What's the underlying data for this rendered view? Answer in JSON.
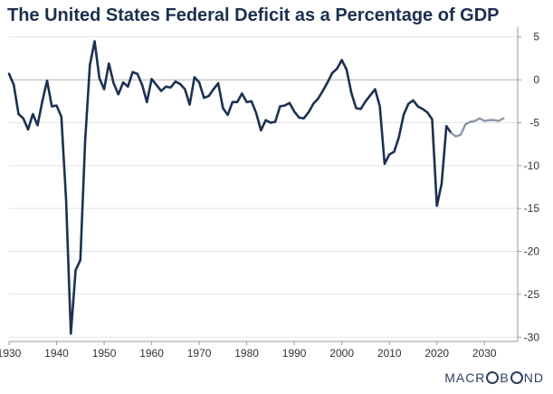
{
  "chart_data": {
    "type": "line",
    "title": "The United States Federal Deficit as a Percentage of GDP",
    "xlabel": "",
    "ylabel": "",
    "xlim": [
      1930,
      2037
    ],
    "ylim": [
      -30.5,
      5.5
    ],
    "x_ticks": [
      1930,
      1940,
      1950,
      1960,
      1970,
      1980,
      1990,
      2000,
      2010,
      2020,
      2030
    ],
    "y_ticks": [
      5,
      0,
      -5,
      -10,
      -15,
      -20,
      -25,
      -30
    ],
    "y_axis_side": "right",
    "grid": "horizontal",
    "series": [
      {
        "color": "#1c3152",
        "x": [
          1930,
          1931,
          1932,
          1933,
          1934,
          1935,
          1936,
          1937,
          1938,
          1939,
          1940,
          1941,
          1942,
          1943,
          1944,
          1945,
          1946,
          1947,
          1948,
          1949,
          1950,
          1951,
          1952,
          1953,
          1954,
          1955,
          1956,
          1957,
          1958,
          1959,
          1960,
          1961,
          1962,
          1963,
          1964,
          1965,
          1966,
          1967,
          1968,
          1969,
          1970,
          1971,
          1972,
          1973,
          1974,
          1975,
          1976,
          1977,
          1978,
          1979,
          1980,
          1981,
          1982,
          1983,
          1984,
          1985,
          1986,
          1987,
          1988,
          1989,
          1990,
          1991,
          1992,
          1993,
          1994,
          1995,
          1996,
          1997,
          1998,
          1999,
          2000,
          2001,
          2002,
          2003,
          2004,
          2005,
          2006,
          2007,
          2008,
          2009,
          2010,
          2011,
          2012,
          2013,
          2014,
          2015,
          2016,
          2017,
          2018,
          2019,
          2020,
          2021,
          2022,
          2023
        ],
        "values": [
          0.7,
          -0.6,
          -4.0,
          -4.5,
          -5.8,
          -4.0,
          -5.3,
          -2.5,
          -0.1,
          -3.1,
          -3.0,
          -4.3,
          -14.0,
          -29.6,
          -22.2,
          -21.0,
          -7.2,
          1.7,
          4.5,
          0.2,
          -1.1,
          1.9,
          -0.4,
          -1.7,
          -0.3,
          -0.8,
          0.9,
          0.7,
          -0.6,
          -2.6,
          0.1,
          -0.6,
          -1.3,
          -0.8,
          -0.9,
          -0.2,
          -0.5,
          -1.1,
          -2.9,
          0.3,
          -0.3,
          -2.1,
          -1.9,
          -1.1,
          -0.4,
          -3.3,
          -4.1,
          -2.6,
          -2.6,
          -1.6,
          -2.6,
          -2.5,
          -3.9,
          -5.9,
          -4.7,
          -5.0,
          -4.9,
          -3.1,
          -3.0,
          -2.7,
          -3.7,
          -4.4,
          -4.5,
          -3.8,
          -2.8,
          -2.2,
          -1.3,
          -0.3,
          0.8,
          1.3,
          2.3,
          1.2,
          -1.5,
          -3.3,
          -3.4,
          -2.5,
          -1.8,
          -1.1,
          -3.1,
          -9.8,
          -8.7,
          -8.4,
          -6.7,
          -4.1,
          -2.8,
          -2.4,
          -3.1,
          -3.4,
          -3.8,
          -4.6,
          -14.7,
          -12.1,
          -5.4,
          -6.2
        ]
      },
      {
        "color": "#8b96a8",
        "x": [
          2023,
          2024,
          2025,
          2026,
          2027,
          2028,
          2029,
          2030,
          2031,
          2032,
          2033,
          2034
        ],
        "values": [
          -6.2,
          -6.6,
          -6.4,
          -5.2,
          -4.9,
          -4.8,
          -4.5,
          -4.8,
          -4.7,
          -4.7,
          -4.8,
          -4.5
        ]
      }
    ]
  },
  "brand": {
    "part1": "MACR",
    "part2": "B",
    "part3": "ND"
  }
}
